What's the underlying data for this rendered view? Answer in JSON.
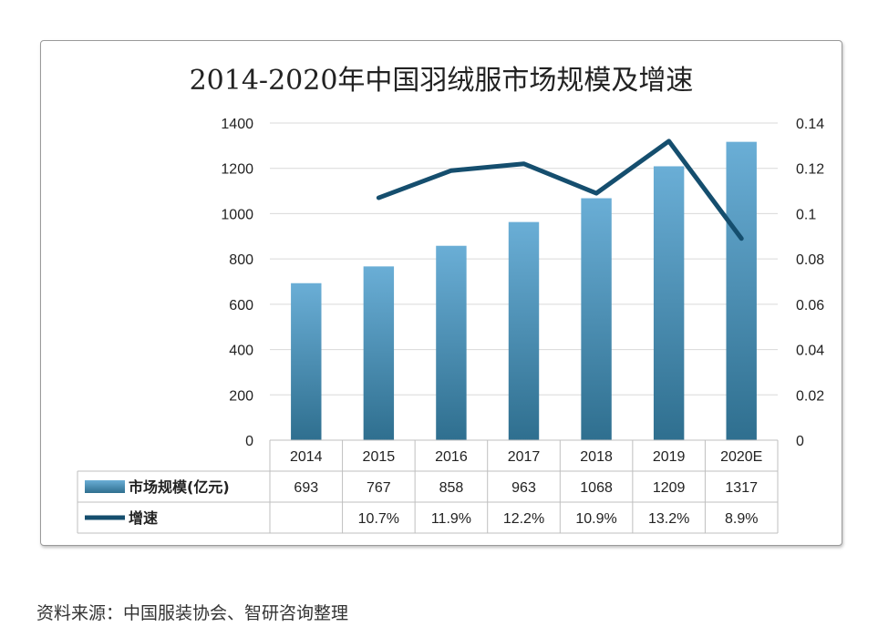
{
  "source_note": "资料来源：中国服装协会、智研咨询整理",
  "chart_data": {
    "type": "bar+line",
    "title": "2014-2020年中国羽绒服市场规模及增速",
    "categories": [
      "2014",
      "2015",
      "2016",
      "2017",
      "2018",
      "2019",
      "2020E"
    ],
    "series": [
      {
        "name": "市场规模(亿元)",
        "type": "bar",
        "axis": "left",
        "values": [
          693,
          767,
          858,
          963,
          1068,
          1209,
          1317
        ],
        "labels": [
          "693",
          "767",
          "858",
          "963",
          "1068",
          "1209",
          "1317"
        ]
      },
      {
        "name": "增速",
        "type": "line",
        "axis": "right",
        "values": [
          null,
          0.107,
          0.119,
          0.122,
          0.109,
          0.132,
          0.089
        ],
        "labels": [
          "",
          "10.7%",
          "11.9%",
          "12.2%",
          "10.9%",
          "13.2%",
          "8.9%"
        ]
      }
    ],
    "y_left": {
      "range": [
        0,
        1400
      ],
      "ticks": [
        "0",
        "200",
        "400",
        "600",
        "800",
        "1000",
        "1200",
        "1400"
      ]
    },
    "y_right": {
      "range": [
        0,
        0.14
      ],
      "ticks": [
        "0",
        "0.02",
        "0.04",
        "0.06",
        "0.08",
        "0.1",
        "0.12",
        "0.14"
      ]
    },
    "grid": true,
    "legend": "data-table",
    "colors": {
      "bar_top": "#6aaed6",
      "bar_bottom": "#2f6f8f",
      "line": "#154e6e",
      "grid": "#d9d9d9",
      "table": "#bfbfbf"
    }
  }
}
